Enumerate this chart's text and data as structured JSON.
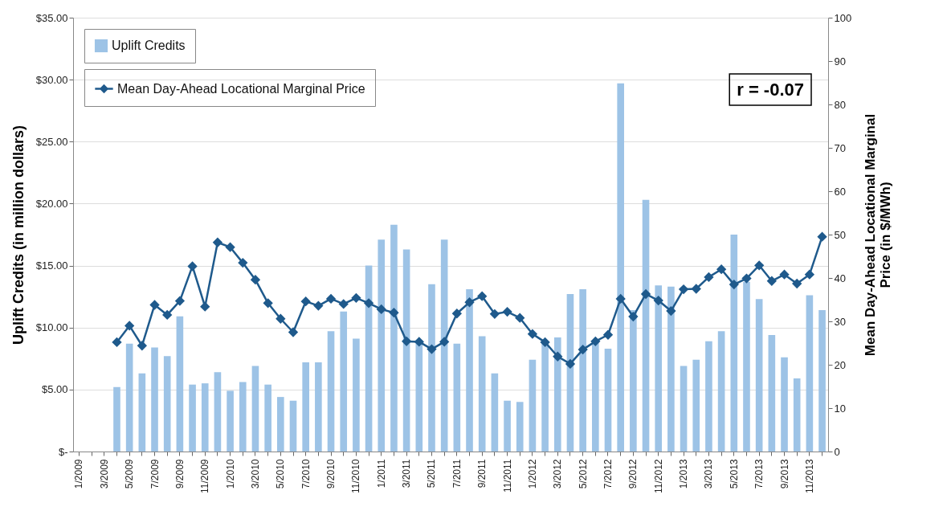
{
  "chart_data": {
    "type": "bar",
    "ylabel": "Uplift Credits (in million dollars)",
    "y2label": "Mean Day-Ahead Locational Marginal Price (in $/MWh)",
    "annotations": [
      "r = -0.07"
    ],
    "categories": [
      "1/2009",
      null,
      "3/2009",
      null,
      "5/2009",
      null,
      "7/2009",
      null,
      "9/2009",
      null,
      "11/2009",
      null,
      "1/2010",
      null,
      "3/2010",
      null,
      "5/2010",
      null,
      "7/2010",
      null,
      "9/2010",
      null,
      "11/2010",
      null,
      "1/2011",
      null,
      "3/2011",
      null,
      "5/2011",
      null,
      "7/2011",
      null,
      "9/2011",
      null,
      "11/2011",
      null,
      "1/2012",
      null,
      "3/2012",
      null,
      "5/2012",
      null,
      "7/2012",
      null,
      "9/2012",
      null,
      "11/2012",
      null,
      "1/2013",
      null,
      "3/2013",
      null,
      "5/2013",
      null,
      "7/2013",
      null,
      "9/2013",
      null,
      "11/2013",
      null
    ],
    "series": [
      {
        "name": "Uplift Credits",
        "color": "#9dc3e6",
        "values": [
          null,
          null,
          null,
          5.2,
          8.7,
          6.3,
          8.4,
          7.7,
          10.9,
          5.4,
          5.5,
          6.4,
          4.9,
          5.6,
          6.9,
          5.4,
          4.4,
          4.1,
          7.2,
          7.2,
          9.7,
          11.3,
          9.1,
          15.0,
          17.1,
          18.3,
          16.3,
          9.0,
          13.5,
          17.1,
          8.7,
          13.1,
          9.3,
          6.3,
          4.1,
          4.0,
          7.4,
          8.8,
          9.2,
          12.7,
          13.1,
          8.9,
          8.3,
          29.7,
          11.4,
          20.3,
          13.4,
          13.3,
          6.9,
          7.4,
          8.9,
          9.7,
          17.5,
          13.7,
          12.3,
          9.4,
          7.6,
          5.9,
          12.6,
          11.4
        ]
      },
      {
        "name": "Mean Day-Ahead Locational Marginal Price",
        "type": "line",
        "axis": "y2",
        "color": "#1f5a8c",
        "marker": "diamond",
        "values": [
          null,
          null,
          null,
          25.2,
          29.0,
          24.4,
          33.8,
          31.5,
          34.7,
          42.7,
          33.4,
          48.2,
          47.1,
          43.5,
          39.6,
          34.2,
          30.6,
          27.5,
          34.6,
          33.6,
          35.2,
          34.0,
          35.4,
          34.2,
          32.8,
          32.0,
          25.4,
          25.3,
          23.6,
          25.3,
          31.8,
          34.4,
          35.8,
          31.7,
          32.2,
          30.8,
          27.1,
          25.2,
          21.9,
          20.2,
          23.5,
          25.4,
          26.9,
          35.2,
          31.1,
          36.3,
          34.8,
          32.4,
          37.4,
          37.5,
          40.2,
          42.0,
          38.5,
          39.9,
          42.9,
          39.3,
          40.8,
          38.7,
          40.8,
          49.5
        ]
      }
    ],
    "ylim": [
      0,
      35
    ],
    "yticks": [
      {
        "value": 0,
        "label": "$-"
      },
      {
        "value": 5,
        "label": "$5.00"
      },
      {
        "value": 10,
        "label": "$10.00"
      },
      {
        "value": 15,
        "label": "$15.00"
      },
      {
        "value": 20,
        "label": "$20.00"
      },
      {
        "value": 25,
        "label": "$25.00"
      },
      {
        "value": 30,
        "label": "$30.00"
      },
      {
        "value": 35,
        "label": "$35.00"
      }
    ],
    "y2lim": [
      0,
      100
    ],
    "y2ticks": [
      0,
      10,
      20,
      30,
      40,
      50,
      60,
      70,
      80,
      90,
      100
    ],
    "grid": "y",
    "legend": "top left"
  }
}
